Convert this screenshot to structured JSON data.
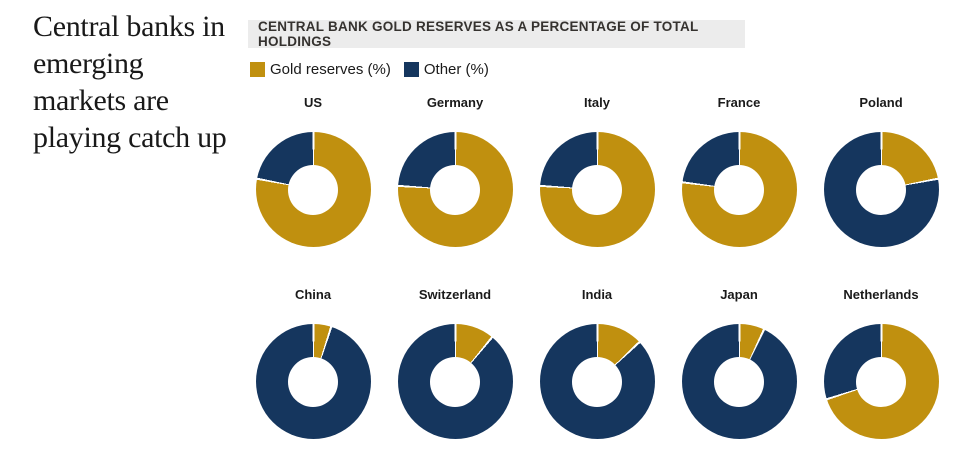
{
  "page": {
    "headline_lines": [
      "Central banks in",
      "emerging",
      "markets are",
      "playing catch up"
    ]
  },
  "chart": {
    "header": "CENTRAL BANK GOLD RESERVES AS A PERCENTAGE OF TOTAL HOLDINGS",
    "legend": [
      {
        "label": "Gold reserves (%)",
        "color": "#c0900f"
      },
      {
        "label": "Other (%)",
        "color": "#15365e"
      }
    ]
  },
  "chart_data": {
    "type": "pie",
    "variant": "donut-small-multiples",
    "title": "CENTRAL BANK GOLD RESERVES AS A PERCENTAGE OF TOTAL HOLDINGS",
    "series_labels": [
      "Gold reserves (%)",
      "Other (%)"
    ],
    "colors": {
      "gold": "#c0900f",
      "other": "#15365e"
    },
    "legend_position": "top-left",
    "layout": "2 rows x 5 columns",
    "countries": [
      {
        "name": "US",
        "gold_pct": 78,
        "other_pct": 22
      },
      {
        "name": "Germany",
        "gold_pct": 76,
        "other_pct": 24
      },
      {
        "name": "Italy",
        "gold_pct": 76,
        "other_pct": 24
      },
      {
        "name": "France",
        "gold_pct": 77,
        "other_pct": 23
      },
      {
        "name": "Poland",
        "gold_pct": 22,
        "other_pct": 78
      },
      {
        "name": "China",
        "gold_pct": 5,
        "other_pct": 95
      },
      {
        "name": "Switzerland",
        "gold_pct": 11,
        "other_pct": 89
      },
      {
        "name": "India",
        "gold_pct": 13,
        "other_pct": 87
      },
      {
        "name": "Japan",
        "gold_pct": 7,
        "other_pct": 93
      },
      {
        "name": "Netherlands",
        "gold_pct": 70,
        "other_pct": 30
      }
    ]
  }
}
